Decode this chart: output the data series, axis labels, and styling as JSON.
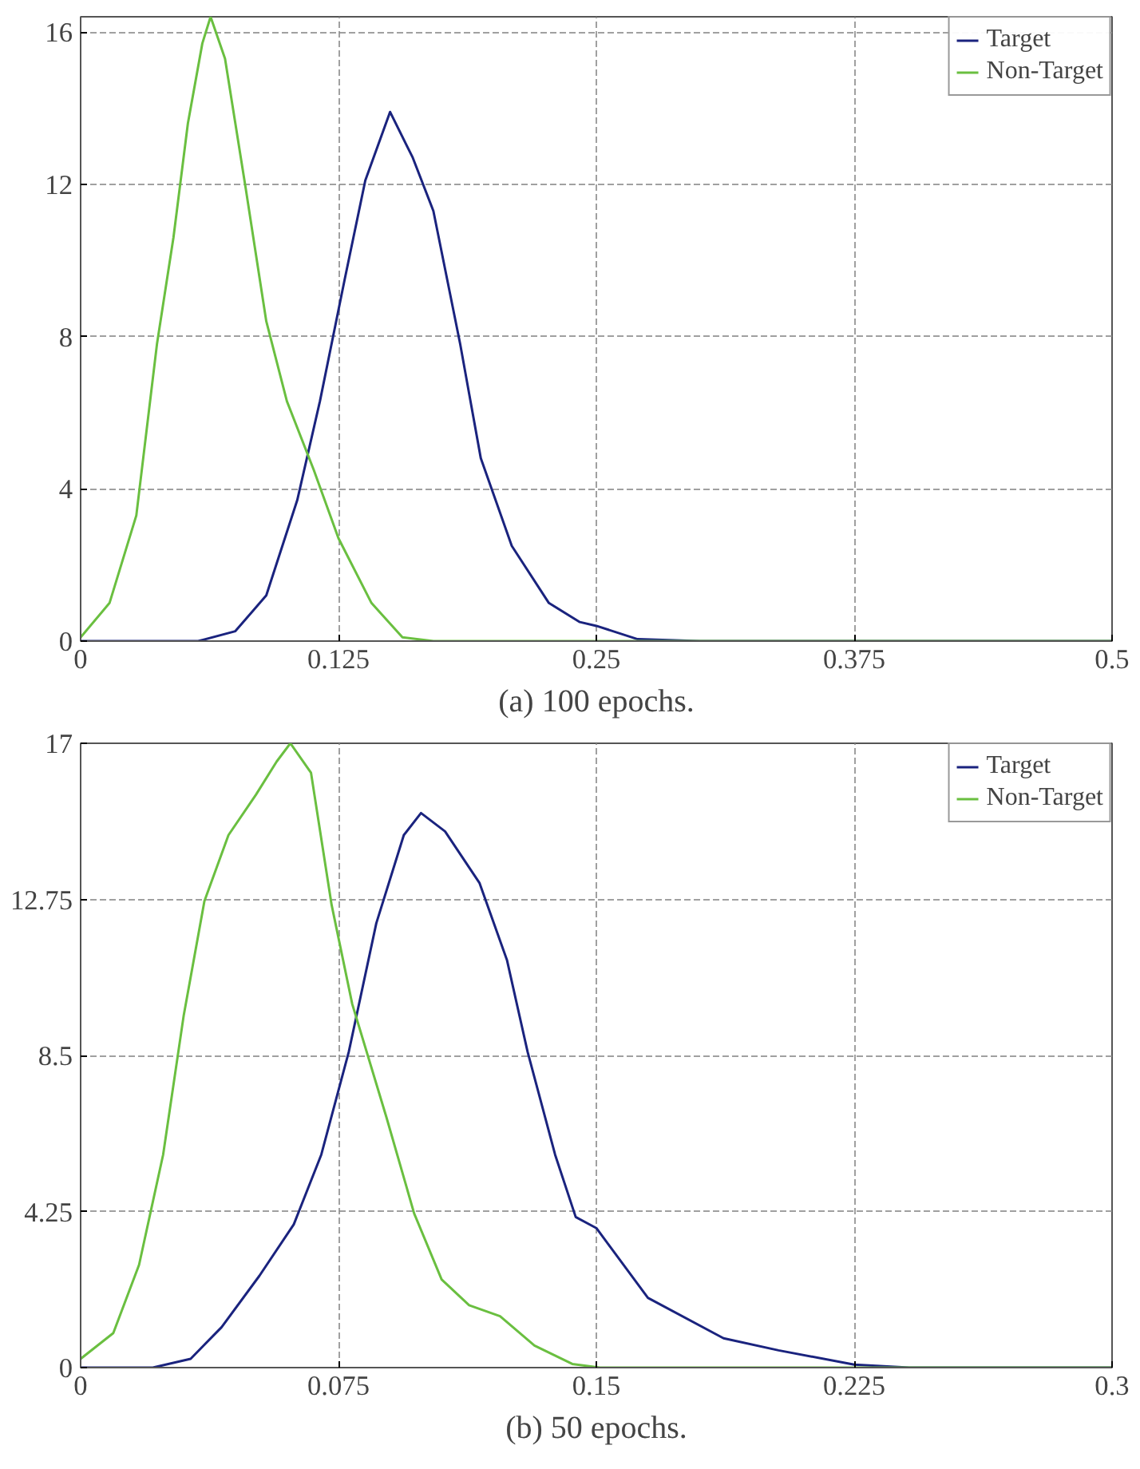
{
  "chart_data": [
    {
      "type": "line",
      "annotations": [
        "(a) 100 epochs."
      ],
      "xlim": [
        0,
        0.5
      ],
      "ylim": [
        0,
        16.4
      ],
      "xticks": [
        0,
        0.125,
        0.25,
        0.375,
        0.5
      ],
      "yticks": [
        0,
        4,
        8,
        12,
        16
      ],
      "grid": true,
      "legend": "top right",
      "line_style": "solid",
      "marker": "none",
      "series": [
        {
          "name": "Target",
          "color": "#1a237e",
          "x": [
            0,
            0.057,
            0.075,
            0.09,
            0.105,
            0.116,
            0.128,
            0.138,
            0.15,
            0.161,
            0.171,
            0.184,
            0.194,
            0.209,
            0.227,
            0.242,
            0.25,
            0.27,
            0.3,
            0.5
          ],
          "values": [
            0,
            0,
            0.26,
            1.2,
            3.7,
            6.3,
            9.5,
            12.1,
            13.9,
            12.7,
            11.3,
            7.8,
            4.8,
            2.5,
            1.0,
            0.5,
            0.4,
            0.05,
            0,
            0
          ]
        },
        {
          "name": "Non-Target",
          "color": "#6abf40",
          "x": [
            0,
            0.014,
            0.027,
            0.037,
            0.045,
            0.052,
            0.059,
            0.063,
            0.07,
            0.08,
            0.09,
            0.1,
            0.113,
            0.125,
            0.141,
            0.156,
            0.171,
            0.5
          ],
          "values": [
            0.1,
            1.0,
            3.3,
            7.8,
            10.6,
            13.6,
            15.7,
            16.4,
            15.3,
            11.9,
            8.4,
            6.3,
            4.5,
            2.7,
            1.0,
            0.1,
            0,
            0
          ]
        }
      ]
    },
    {
      "type": "line",
      "annotations": [
        "(b) 50 epochs."
      ],
      "xlim": [
        0,
        0.3
      ],
      "ylim": [
        0,
        17
      ],
      "xticks": [
        0,
        0.075,
        0.15,
        0.225,
        0.3
      ],
      "yticks": [
        0,
        4.25,
        8.5,
        12.75,
        17
      ],
      "grid": true,
      "legend": "top right",
      "line_style": "solid",
      "marker": "none",
      "series": [
        {
          "name": "Target",
          "color": "#1a237e",
          "x": [
            0,
            0.021,
            0.032,
            0.041,
            0.052,
            0.062,
            0.07,
            0.078,
            0.086,
            0.094,
            0.099,
            0.106,
            0.116,
            0.124,
            0.13,
            0.138,
            0.144,
            0.15,
            0.165,
            0.187,
            0.203,
            0.225,
            0.241,
            0.3
          ],
          "values": [
            0,
            0,
            0.24,
            1.1,
            2.5,
            3.9,
            5.8,
            8.6,
            12.1,
            14.5,
            15.1,
            14.6,
            13.2,
            11.1,
            8.6,
            5.8,
            4.1,
            3.8,
            1.9,
            0.8,
            0.47,
            0.08,
            0,
            0
          ]
        },
        {
          "name": "Non-Target",
          "color": "#6abf40",
          "x": [
            0,
            0.0095,
            0.017,
            0.024,
            0.03,
            0.036,
            0.043,
            0.051,
            0.057,
            0.061,
            0.067,
            0.073,
            0.079,
            0.089,
            0.097,
            0.105,
            0.113,
            0.122,
            0.132,
            0.143,
            0.151,
            0.3
          ],
          "values": [
            0.24,
            0.94,
            2.8,
            5.8,
            9.6,
            12.7,
            14.5,
            15.6,
            16.5,
            17.0,
            16.2,
            12.6,
            9.9,
            6.8,
            4.2,
            2.4,
            1.7,
            1.4,
            0.6,
            0.1,
            0,
            0
          ]
        }
      ]
    }
  ]
}
